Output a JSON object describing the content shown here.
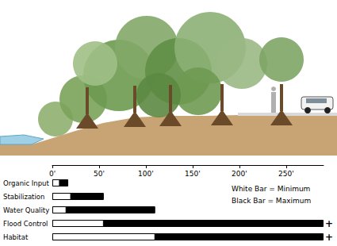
{
  "chart_data": {
    "type": "bar",
    "orientation": "horizontal",
    "categories": [
      "Organic Input",
      "Stabilization",
      "Water Quality",
      "Flood Control",
      "Habitat"
    ],
    "series": [
      {
        "name": "Black Bar = Maximum",
        "color": "#000000",
        "values": [
          17,
          55,
          110,
          290,
          290
        ]
      },
      {
        "name": "White Bar = Minimum",
        "color": "#ffffff",
        "values": [
          8,
          20,
          15,
          55,
          110
        ]
      }
    ],
    "xlim": [
      0,
      290
    ],
    "xticks": [
      {
        "value": 0,
        "label": "0'"
      },
      {
        "value": 50,
        "label": "50'"
      },
      {
        "value": 100,
        "label": "100'"
      },
      {
        "value": 150,
        "label": "150'"
      },
      {
        "value": 200,
        "label": "200'"
      },
      {
        "value": 250,
        "label": "250'"
      }
    ],
    "legend": "upper right",
    "grid": false,
    "annotations": [
      {
        "category": "Flood Control",
        "text": "+"
      },
      {
        "category": "Habitat",
        "text": "+"
      }
    ]
  }
}
